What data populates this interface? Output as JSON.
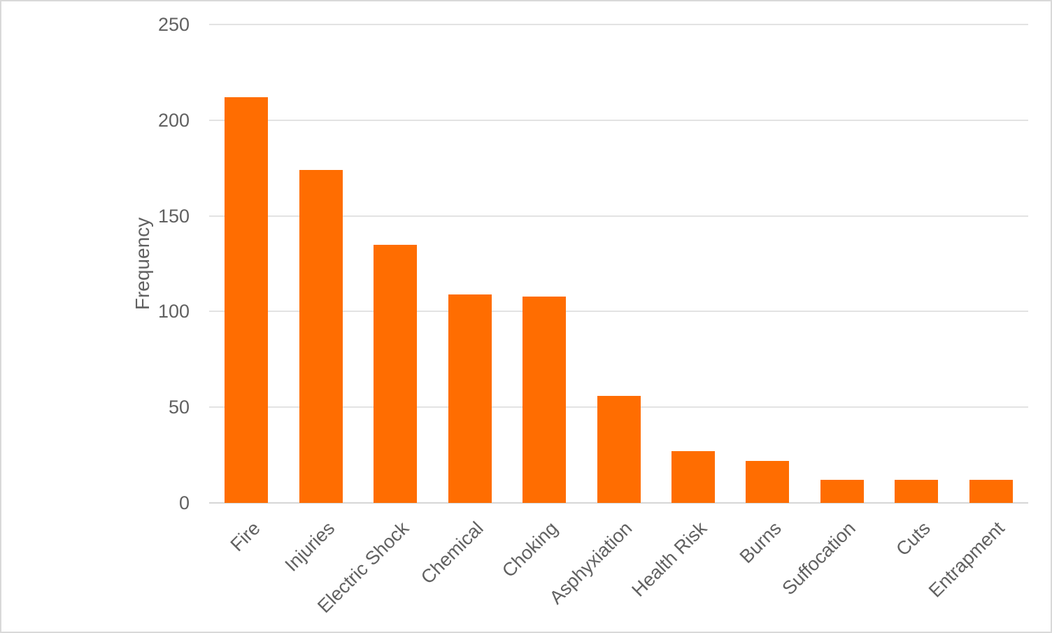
{
  "chart_data": {
    "type": "bar",
    "title": "",
    "xlabel": "",
    "ylabel": "Frequency",
    "categories": [
      "Fire",
      "Injuries",
      "Electric Shock",
      "Chemical",
      "Choking",
      "Asphyxiation",
      "Health Risk",
      "Burns",
      "Suffocation",
      "Cuts",
      "Entrapment"
    ],
    "values": [
      212,
      174,
      135,
      109,
      108,
      56,
      27,
      22,
      12,
      12,
      12
    ],
    "ylim": [
      0,
      250
    ],
    "yticks": [
      0,
      50,
      100,
      150,
      200,
      250
    ],
    "grid": true,
    "legend": "none",
    "colors": {
      "bar": "#ff6d01",
      "gridline": "#e3e3e3",
      "axis_line": "#d6d6d6",
      "text": "#616161",
      "background": "#ffffff",
      "border": "#d9d9d9"
    }
  }
}
